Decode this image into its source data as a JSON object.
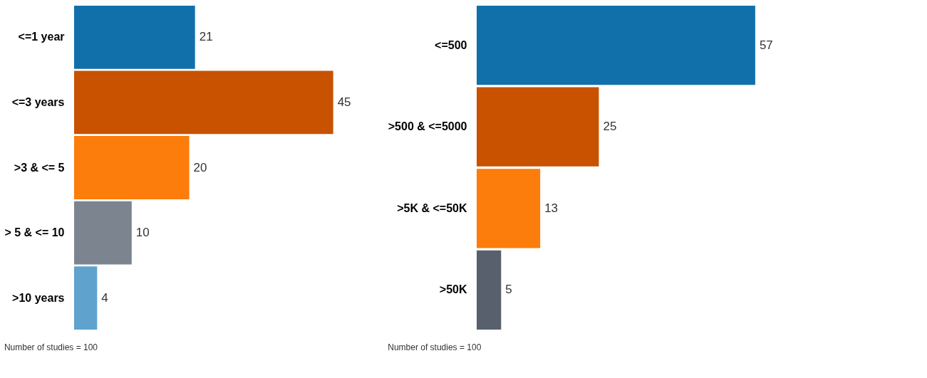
{
  "chart_data": [
    {
      "type": "bar",
      "orientation": "horizontal",
      "categories": [
        "<=1 year",
        "<=3 years",
        ">3 & <= 5",
        "> 5 & <= 10",
        ">10 years"
      ],
      "values": [
        21,
        45,
        20,
        10,
        4
      ],
      "colors": [
        "#1170aa",
        "#c85200",
        "#fc7d0b",
        "#7b848f",
        "#5fa2ce"
      ],
      "data_labels": true,
      "grid": false,
      "annotations": [
        "Number of studies = 100"
      ]
    },
    {
      "type": "bar",
      "orientation": "horizontal",
      "categories": [
        "<=500",
        ">500 & <=5000",
        ">5K & <=50K",
        ">50K"
      ],
      "values": [
        57,
        25,
        13,
        5
      ],
      "colors": [
        "#1170aa",
        "#c85200",
        "#fc7d0b",
        "#57606c"
      ],
      "data_labels": true,
      "grid": false,
      "annotations": [
        "Number of studies = 100"
      ]
    }
  ]
}
